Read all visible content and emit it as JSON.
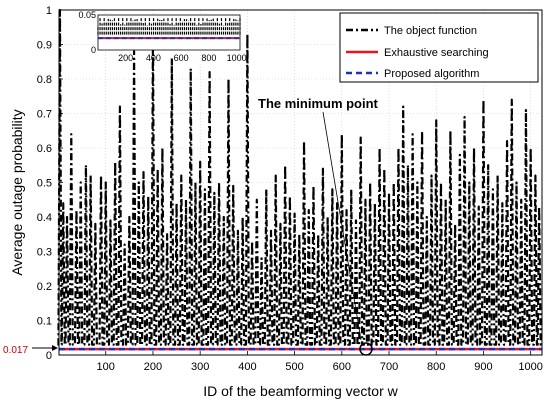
{
  "chart_data": {
    "type": "line",
    "xlabel": "ID of the beamforming vector w",
    "ylabel": "Average outage probability",
    "xlim": [
      1,
      1024
    ],
    "ylim": [
      0,
      1
    ],
    "xticks": [
      "100",
      "200",
      "300",
      "400",
      "500",
      "600",
      "700",
      "800",
      "900",
      "1000"
    ],
    "yticks": [
      "0",
      "0.1",
      "0.2",
      "0.3",
      "0.4",
      "0.5",
      "0.6",
      "0.7",
      "0.8",
      "0.9",
      "1"
    ],
    "grid": true,
    "legend_position": "top-right",
    "series": [
      {
        "name": "The object function",
        "color": "#000000",
        "style": "dash-dot",
        "peaks": [
          {
            "x": 3,
            "y": 1.0
          },
          {
            "x": 10,
            "y": 0.44
          },
          {
            "x": 18,
            "y": 0.4
          },
          {
            "x": 27,
            "y": 0.64
          },
          {
            "x": 38,
            "y": 0.42
          },
          {
            "x": 47,
            "y": 0.5
          },
          {
            "x": 58,
            "y": 0.55
          },
          {
            "x": 68,
            "y": 0.52
          },
          {
            "x": 78,
            "y": 0.38
          },
          {
            "x": 90,
            "y": 0.52
          },
          {
            "x": 100,
            "y": 0.5
          },
          {
            "x": 110,
            "y": 0.39
          },
          {
            "x": 120,
            "y": 0.56
          },
          {
            "x": 130,
            "y": 0.72
          },
          {
            "x": 140,
            "y": 0.32
          },
          {
            "x": 150,
            "y": 0.4
          },
          {
            "x": 160,
            "y": 0.88
          },
          {
            "x": 170,
            "y": 0.5
          },
          {
            "x": 180,
            "y": 0.53
          },
          {
            "x": 190,
            "y": 0.46
          },
          {
            "x": 200,
            "y": 0.93
          },
          {
            "x": 210,
            "y": 0.54
          },
          {
            "x": 220,
            "y": 0.6
          },
          {
            "x": 230,
            "y": 0.35
          },
          {
            "x": 240,
            "y": 0.86
          },
          {
            "x": 250,
            "y": 0.44
          },
          {
            "x": 260,
            "y": 0.52
          },
          {
            "x": 270,
            "y": 0.45
          },
          {
            "x": 280,
            "y": 0.83
          },
          {
            "x": 290,
            "y": 0.5
          },
          {
            "x": 300,
            "y": 0.56
          },
          {
            "x": 310,
            "y": 0.48
          },
          {
            "x": 320,
            "y": 0.82
          },
          {
            "x": 330,
            "y": 0.47
          },
          {
            "x": 340,
            "y": 0.5
          },
          {
            "x": 350,
            "y": 0.4
          },
          {
            "x": 360,
            "y": 0.8
          },
          {
            "x": 370,
            "y": 0.49
          },
          {
            "x": 380,
            "y": 0.36
          },
          {
            "x": 390,
            "y": 0.4
          },
          {
            "x": 400,
            "y": 0.93
          },
          {
            "x": 410,
            "y": 0.33
          },
          {
            "x": 420,
            "y": 0.45
          },
          {
            "x": 430,
            "y": 0.28
          },
          {
            "x": 440,
            "y": 0.48
          },
          {
            "x": 450,
            "y": 0.36
          },
          {
            "x": 460,
            "y": 0.52
          },
          {
            "x": 470,
            "y": 0.38
          },
          {
            "x": 480,
            "y": 0.55
          },
          {
            "x": 490,
            "y": 0.46
          },
          {
            "x": 500,
            "y": 0.41
          },
          {
            "x": 510,
            "y": 0.35
          },
          {
            "x": 520,
            "y": 0.62
          },
          {
            "x": 530,
            "y": 0.42
          },
          {
            "x": 540,
            "y": 0.49
          },
          {
            "x": 550,
            "y": 0.35
          },
          {
            "x": 560,
            "y": 0.54
          },
          {
            "x": 570,
            "y": 0.4
          },
          {
            "x": 580,
            "y": 0.48
          },
          {
            "x": 590,
            "y": 0.44
          },
          {
            "x": 600,
            "y": 0.64
          },
          {
            "x": 610,
            "y": 0.42
          },
          {
            "x": 620,
            "y": 0.48
          },
          {
            "x": 630,
            "y": 0.39
          },
          {
            "x": 640,
            "y": 0.63
          },
          {
            "x": 650,
            "y": 0.45
          },
          {
            "x": 660,
            "y": 0.5
          },
          {
            "x": 670,
            "y": 0.44
          },
          {
            "x": 680,
            "y": 0.6
          },
          {
            "x": 690,
            "y": 0.54
          },
          {
            "x": 700,
            "y": 0.47
          },
          {
            "x": 710,
            "y": 0.5
          },
          {
            "x": 720,
            "y": 0.6
          },
          {
            "x": 730,
            "y": 0.72
          },
          {
            "x": 740,
            "y": 0.55
          },
          {
            "x": 750,
            "y": 0.64
          },
          {
            "x": 760,
            "y": 0.5
          },
          {
            "x": 770,
            "y": 0.65
          },
          {
            "x": 780,
            "y": 0.4
          },
          {
            "x": 790,
            "y": 0.52
          },
          {
            "x": 800,
            "y": 0.68
          },
          {
            "x": 810,
            "y": 0.5
          },
          {
            "x": 820,
            "y": 0.45
          },
          {
            "x": 830,
            "y": 0.65
          },
          {
            "x": 840,
            "y": 0.38
          },
          {
            "x": 850,
            "y": 0.58
          },
          {
            "x": 860,
            "y": 0.69
          },
          {
            "x": 870,
            "y": 0.5
          },
          {
            "x": 880,
            "y": 0.6
          },
          {
            "x": 890,
            "y": 0.43
          },
          {
            "x": 900,
            "y": 0.74
          },
          {
            "x": 910,
            "y": 0.55
          },
          {
            "x": 920,
            "y": 0.48
          },
          {
            "x": 930,
            "y": 0.52
          },
          {
            "x": 940,
            "y": 0.44
          },
          {
            "x": 950,
            "y": 0.62
          },
          {
            "x": 960,
            "y": 0.74
          },
          {
            "x": 970,
            "y": 0.5
          },
          {
            "x": 980,
            "y": 0.45
          },
          {
            "x": 990,
            "y": 0.71
          },
          {
            "x": 1000,
            "y": 0.6
          },
          {
            "x": 1010,
            "y": 0.52
          },
          {
            "x": 1018,
            "y": 0.43
          }
        ],
        "baseline": 0.03
      },
      {
        "name": "Exhaustive searching",
        "color": "#e8161a",
        "style": "solid",
        "value": 0.017
      },
      {
        "name": "Proposed algorithm",
        "color": "#1f2fbf",
        "style": "dashed",
        "value": 0.017
      }
    ],
    "annotations": [
      {
        "text": "The minimum point",
        "x": 655,
        "y": 0.017
      },
      {
        "text": "0.017",
        "y": 0.017,
        "color": "#cc0000"
      }
    ],
    "inset": {
      "xlim": [
        1,
        1024
      ],
      "ylim": [
        0,
        0.05
      ],
      "xticks": [
        "200",
        "400",
        "600",
        "800",
        "1000"
      ],
      "yticks": [
        "0.05",
        "0"
      ]
    }
  }
}
